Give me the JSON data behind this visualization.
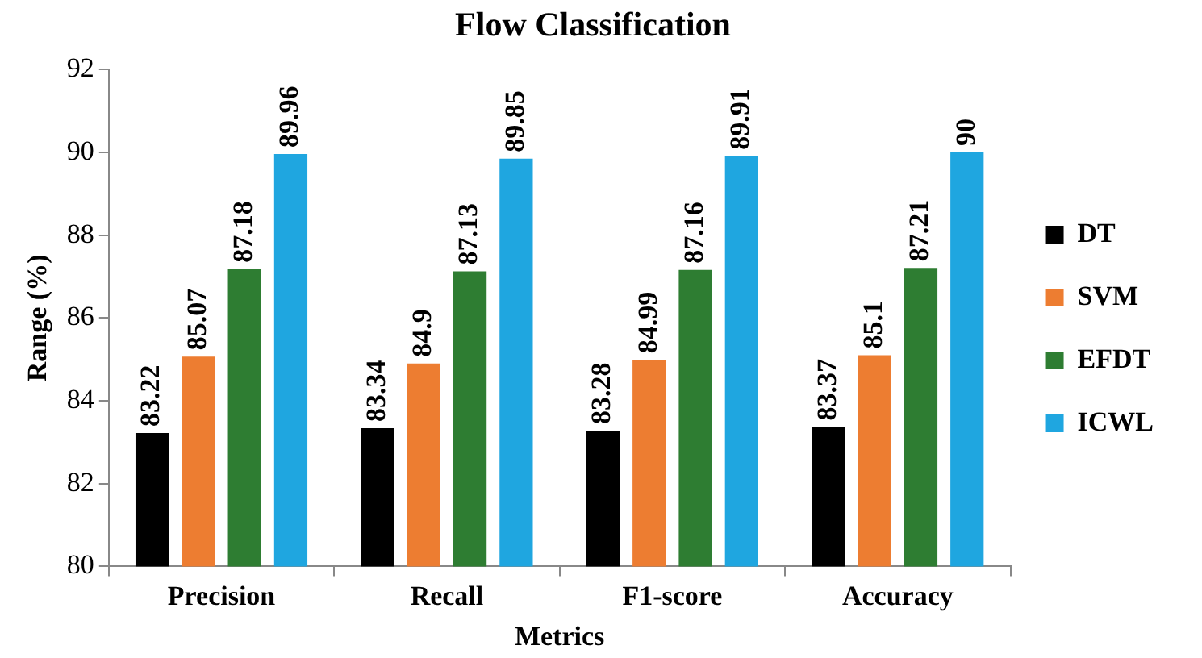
{
  "chart_data": {
    "type": "bar",
    "title": "Flow Classification",
    "xlabel": "Metrics",
    "ylabel": "Range (%)",
    "categories": [
      "Precision",
      "Recall",
      "F1-score",
      "Accuracy"
    ],
    "series": [
      {
        "name": "DT",
        "color": "#000000",
        "values": [
          83.22,
          83.34,
          83.28,
          83.37
        ]
      },
      {
        "name": "SVM",
        "color": "#ed7d31",
        "values": [
          85.07,
          84.9,
          84.99,
          85.1
        ]
      },
      {
        "name": "EFDT",
        "color": "#2e7d32",
        "values": [
          87.18,
          87.13,
          87.16,
          87.21
        ]
      },
      {
        "name": "ICWL",
        "color": "#1fa6e0",
        "values": [
          89.96,
          89.85,
          89.91,
          90
        ]
      }
    ],
    "ylim": [
      80,
      92
    ],
    "yticks": [
      80,
      82,
      84,
      86,
      88,
      90,
      92
    ],
    "grid": false,
    "legend": "right",
    "data_labels": true
  }
}
